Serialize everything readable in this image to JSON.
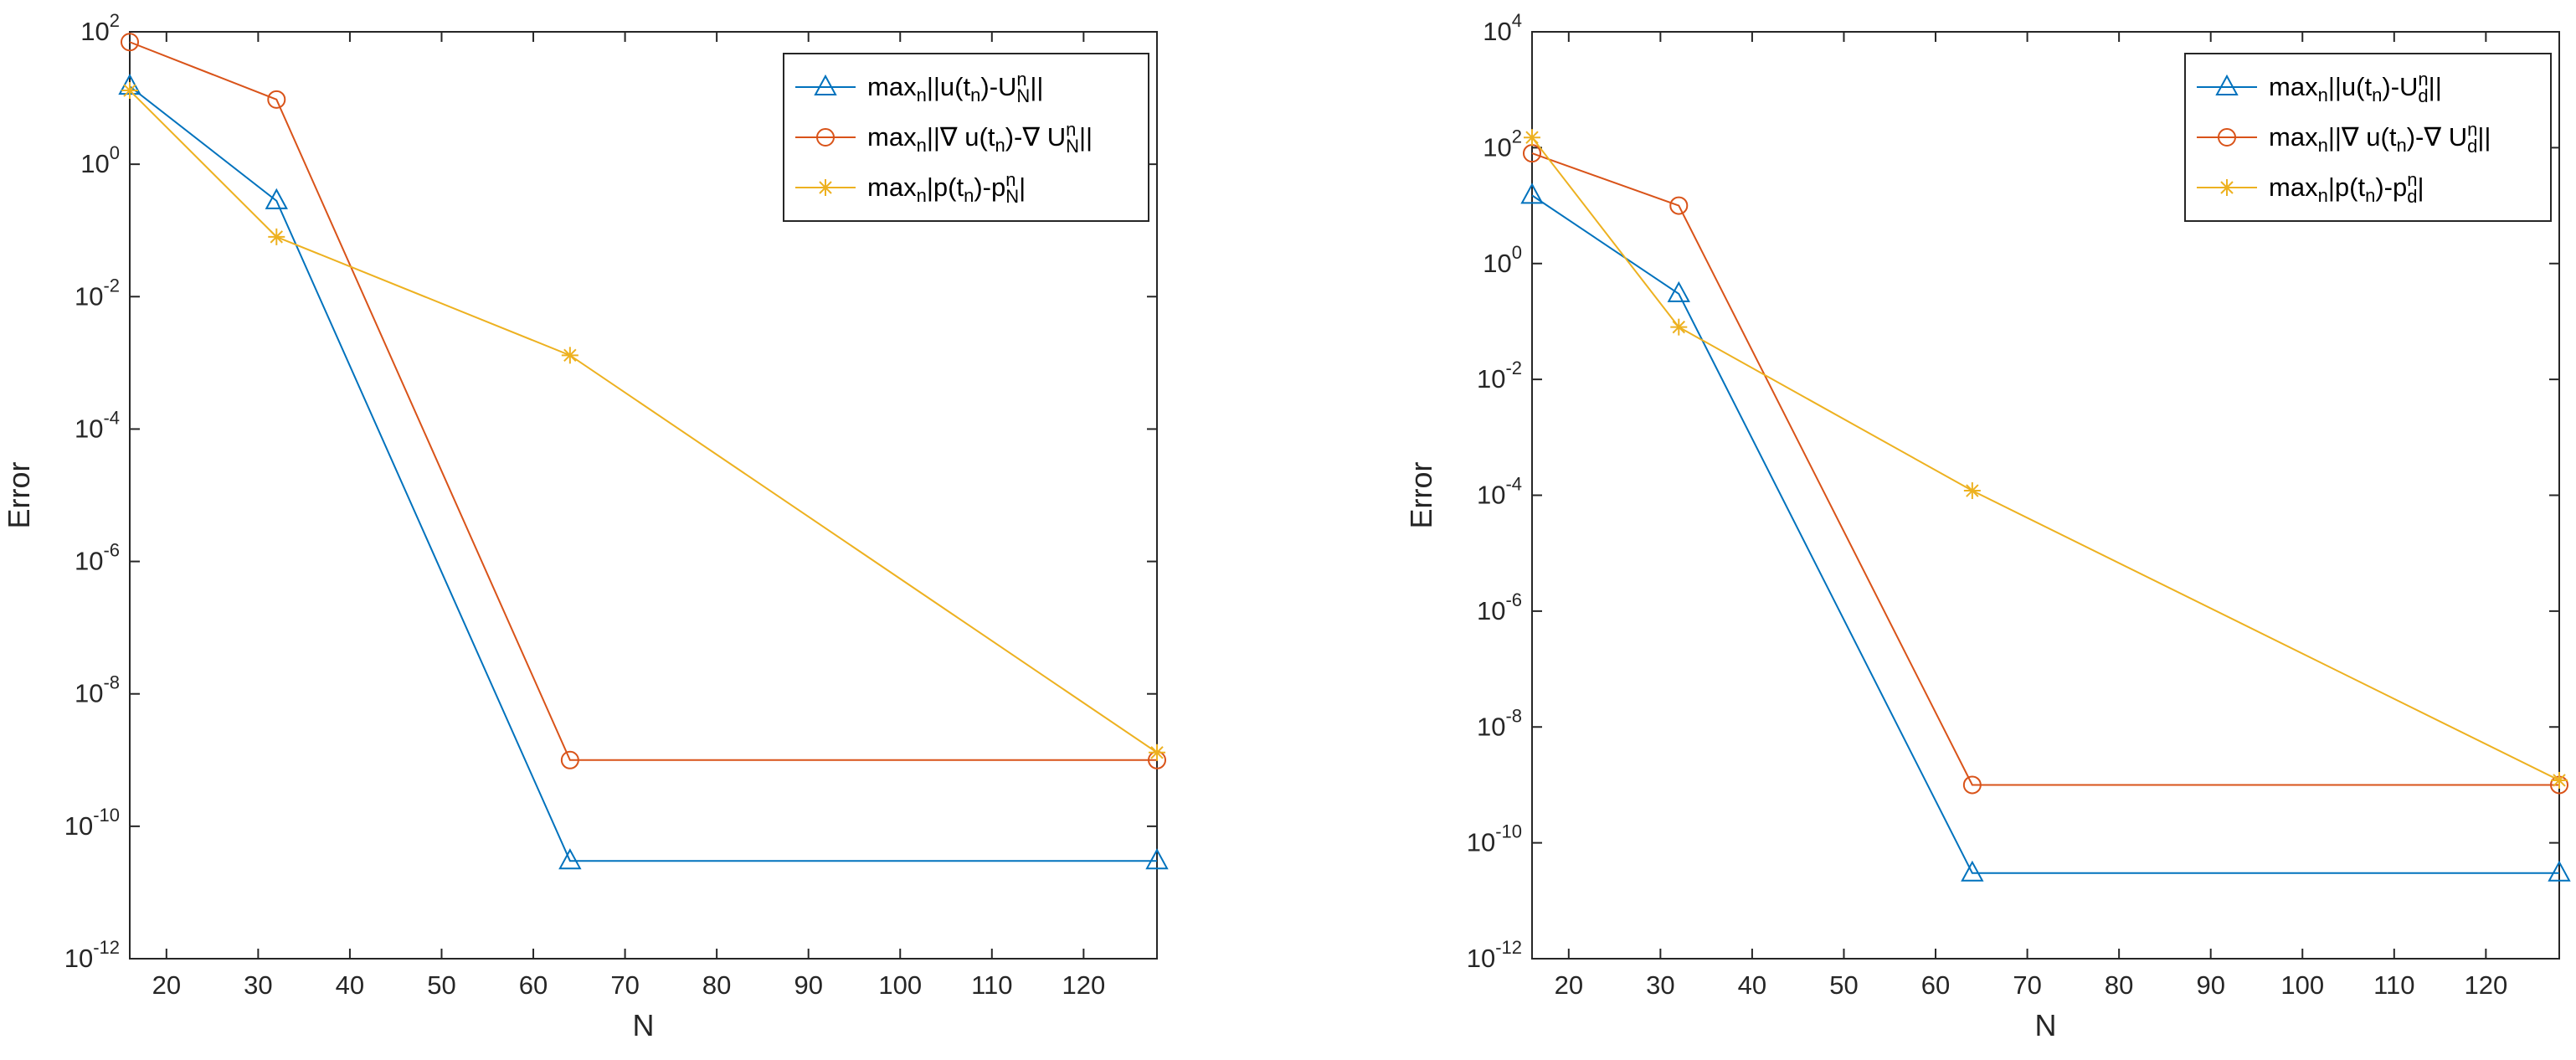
{
  "colors": {
    "series1": "#0072BD",
    "series2": "#D95319",
    "series3": "#EDB120",
    "axis": "#262626",
    "grid": "none"
  },
  "chart_data": [
    {
      "type": "line",
      "title": "",
      "xlabel": "N",
      "ylabel": "Error",
      "xlim": [
        16,
        128
      ],
      "ylim": [
        1e-12,
        100
      ],
      "yscale": "log",
      "grid": false,
      "legend_position": "top-right",
      "x": [
        16,
        32,
        64,
        128
      ],
      "xticks": [
        20,
        30,
        40,
        50,
        60,
        70,
        80,
        90,
        100,
        110,
        120
      ],
      "xtick_labels": [
        "20",
        "30",
        "40",
        "50",
        "60",
        "70",
        "80",
        "90",
        "100",
        "110",
        "120"
      ],
      "yticks_exp": [
        "-12",
        "-10",
        "-8",
        "-6",
        "-4",
        "-2",
        "0",
        "2"
      ],
      "ytick_base": "10",
      "series": [
        {
          "name": "max_n||u(t_n)-U_N^n||",
          "legend": {
            "pre": "max",
            "s1": "n",
            "mid1": "||u(t",
            "s2": "n",
            "mid2": ")-U",
            "sup": "n",
            "sub": "N",
            "post": "||"
          },
          "marker": "triangle",
          "values": [
            15,
            0.28,
            3e-11,
            3e-11
          ]
        },
        {
          "name": "max_n||∇ u(t_n)-∇ U_N^n||",
          "legend": {
            "pre": "max",
            "s1": "n",
            "mid1": "||∇ u(t",
            "s2": "n",
            "mid2": ")-∇ U",
            "sup": "n",
            "sub": "N",
            "post": "||"
          },
          "marker": "circle",
          "values": [
            70,
            9.5,
            1e-09,
            1e-09
          ]
        },
        {
          "name": "max_n|p(t_n)-p_N^n|",
          "legend": {
            "pre": "max",
            "s1": "n",
            "mid1": "|p(t",
            "s2": "n",
            "mid2": ")-p",
            "sup": "n",
            "sub": "N",
            "post": "|"
          },
          "marker": "star",
          "values": [
            13,
            0.08,
            0.0013,
            1.3e-09
          ]
        }
      ]
    },
    {
      "type": "line",
      "title": "",
      "xlabel": "N",
      "ylabel": "Error",
      "xlim": [
        16,
        128
      ],
      "ylim": [
        1e-12,
        10000
      ],
      "yscale": "log",
      "grid": false,
      "legend_position": "top-right",
      "x": [
        16,
        32,
        64,
        128
      ],
      "xticks": [
        20,
        30,
        40,
        50,
        60,
        70,
        80,
        90,
        100,
        110,
        120
      ],
      "xtick_labels": [
        "20",
        "30",
        "40",
        "50",
        "60",
        "70",
        "80",
        "90",
        "100",
        "110",
        "120"
      ],
      "yticks_exp": [
        "-12",
        "-10",
        "-8",
        "-6",
        "-4",
        "-2",
        "0",
        "2",
        "4"
      ],
      "ytick_base": "10",
      "series": [
        {
          "name": "max_n||u(t_n)-U_d^n||",
          "legend": {
            "pre": "max",
            "s1": "n",
            "mid1": "||u(t",
            "s2": "n",
            "mid2": ")-U",
            "sup": "n",
            "sub": "d",
            "post": "||"
          },
          "marker": "triangle",
          "values": [
            15,
            0.3,
            3e-11,
            3e-11
          ]
        },
        {
          "name": "max_n||∇ u(t_n)-∇ U_d^n||",
          "legend": {
            "pre": "max",
            "s1": "n",
            "mid1": "||∇ u(t",
            "s2": "n",
            "mid2": ")-∇ U",
            "sup": "n",
            "sub": "d",
            "post": "||"
          },
          "marker": "circle",
          "values": [
            80,
            10,
            1e-09,
            1e-09
          ]
        },
        {
          "name": "max_n|p(t_n)-p_d^n|",
          "legend": {
            "pre": "max",
            "s1": "n",
            "mid1": "|p(t",
            "s2": "n",
            "mid2": ")-p",
            "sup": "n",
            "sub": "d",
            "post": "|"
          },
          "marker": "star",
          "values": [
            150,
            0.08,
            0.00012,
            1.2e-09
          ]
        }
      ]
    }
  ]
}
